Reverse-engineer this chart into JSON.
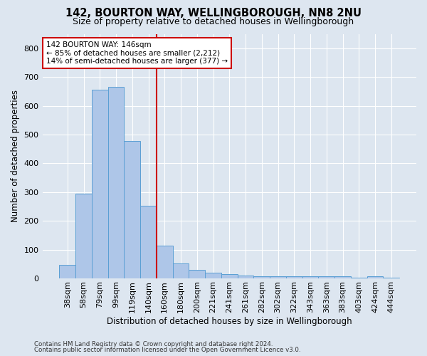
{
  "title1": "142, BOURTON WAY, WELLINGBOROUGH, NN8 2NU",
  "title2": "Size of property relative to detached houses in Wellingborough",
  "xlabel": "Distribution of detached houses by size in Wellingborough",
  "ylabel": "Number of detached properties",
  "footnote1": "Contains HM Land Registry data © Crown copyright and database right 2024.",
  "footnote2": "Contains public sector information licensed under the Open Government Licence v3.0.",
  "annotation_title": "142 BOURTON WAY: 146sqm",
  "annotation_line1": "← 85% of detached houses are smaller (2,212)",
  "annotation_line2": "14% of semi-detached houses are larger (377) →",
  "bar_labels": [
    "38sqm",
    "58sqm",
    "79sqm",
    "99sqm",
    "119sqm",
    "140sqm",
    "160sqm",
    "180sqm",
    "200sqm",
    "221sqm",
    "241sqm",
    "261sqm",
    "282sqm",
    "302sqm",
    "322sqm",
    "343sqm",
    "363sqm",
    "383sqm",
    "403sqm",
    "424sqm",
    "444sqm"
  ],
  "bar_values": [
    46,
    295,
    655,
    665,
    477,
    253,
    113,
    52,
    29,
    20,
    14,
    10,
    7,
    7,
    7,
    7,
    7,
    7,
    2,
    8,
    2
  ],
  "bar_color": "#aec6e8",
  "bar_edge_color": "#5a9fd4",
  "vline_x": 5.5,
  "vline_color": "#cc0000",
  "ylim": [
    0,
    850
  ],
  "yticks": [
    0,
    100,
    200,
    300,
    400,
    500,
    600,
    700,
    800
  ],
  "bg_color": "#dde6f0",
  "plot_bg_color": "#dde6f0",
  "annotation_box_color": "#ffffff",
  "annotation_box_edge": "#cc0000",
  "title1_fontsize": 10.5,
  "title2_fontsize": 9,
  "ylabel_fontsize": 8.5,
  "xlabel_fontsize": 8.5,
  "tick_fontsize": 8,
  "annot_fontsize": 7.5,
  "footnote_fontsize": 6.2
}
